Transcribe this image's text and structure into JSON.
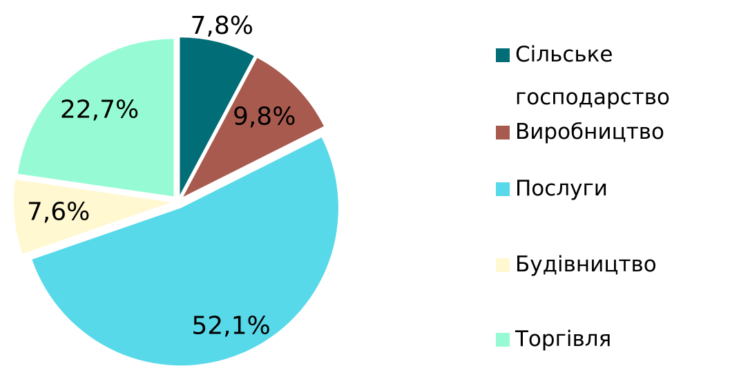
{
  "chart_data": {
    "type": "pie",
    "categories": [
      "Сільське господарство",
      "Виробництво",
      "Послуги",
      "Будівництво",
      "Торгівля"
    ],
    "values": [
      7.8,
      9.8,
      52.1,
      7.6,
      22.7
    ],
    "value_labels": [
      "7,8%",
      "9,8%",
      "52,1%",
      "7,6%",
      "22,7%"
    ],
    "colors": [
      "#006d77",
      "#a85a4f",
      "#57d9e9",
      "#fff8d1",
      "#96fbd4"
    ],
    "legend": "right"
  }
}
